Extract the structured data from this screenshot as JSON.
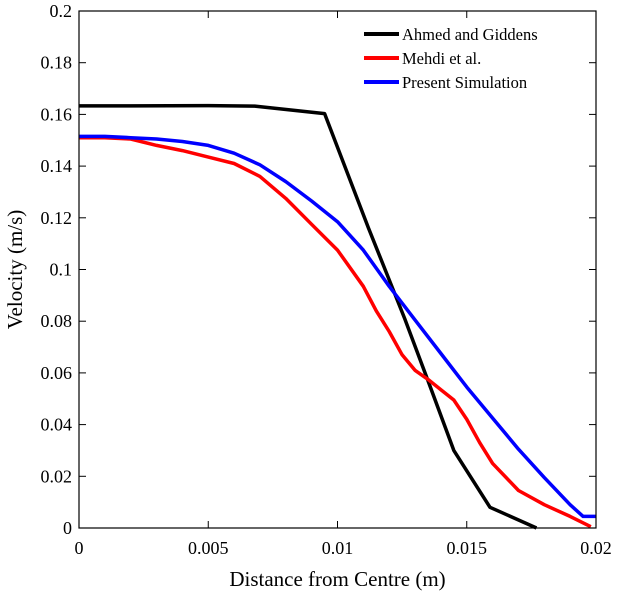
{
  "chart_data": {
    "type": "line",
    "title": "",
    "xlabel": "Distance from Centre (m)",
    "ylabel": "Velocity (m/s)",
    "xlim": [
      0,
      0.02
    ],
    "ylim": [
      0,
      0.2
    ],
    "xticks": [
      0,
      0.005,
      0.01,
      0.015,
      0.02
    ],
    "xtick_labels": [
      "0",
      "0.005",
      "0.01",
      "0.015",
      "0.02"
    ],
    "yticks": [
      0,
      0.02,
      0.04,
      0.06,
      0.08,
      0.1,
      0.12,
      0.14,
      0.16,
      0.18,
      0.2
    ],
    "ytick_labels": [
      "0",
      "0.02",
      "0.04",
      "0.06",
      "0.08",
      "0.1",
      "0.12",
      "0.14",
      "0.16",
      "0.18",
      "0.2"
    ],
    "grid": false,
    "legend_position": "top-right",
    "series": [
      {
        "name": "Ahmed and Giddens",
        "color": "#000000",
        "x": [
          0,
          0.002,
          0.005,
          0.0068,
          0.0095,
          0.0112,
          0.0126,
          0.0135,
          0.0145,
          0.0159,
          0.0177
        ],
        "y": [
          0.1633,
          0.1633,
          0.1634,
          0.1632,
          0.1603,
          0.116,
          0.081,
          0.057,
          0.03,
          0.008,
          0.0
        ]
      },
      {
        "name": "Mehdi et al.",
        "color": "#ff0000",
        "x": [
          0,
          0.001,
          0.002,
          0.003,
          0.004,
          0.005,
          0.006,
          0.007,
          0.008,
          0.009,
          0.01,
          0.011,
          0.0115,
          0.012,
          0.0125,
          0.013,
          0.0135,
          0.014,
          0.0145,
          0.015,
          0.0155,
          0.016,
          0.017,
          0.018,
          0.019,
          0.0198
        ],
        "y": [
          0.151,
          0.151,
          0.1505,
          0.148,
          0.146,
          0.1435,
          0.141,
          0.136,
          0.1275,
          0.1175,
          0.1075,
          0.0935,
          0.084,
          0.076,
          0.067,
          0.061,
          0.0575,
          0.0535,
          0.0495,
          0.042,
          0.033,
          0.025,
          0.0145,
          0.009,
          0.0045,
          0.0005
        ]
      },
      {
        "name": "Present Simulation",
        "color": "#0000ff",
        "x": [
          0,
          0.001,
          0.002,
          0.003,
          0.004,
          0.005,
          0.006,
          0.007,
          0.008,
          0.009,
          0.01,
          0.011,
          0.012,
          0.013,
          0.014,
          0.015,
          0.016,
          0.017,
          0.018,
          0.019,
          0.0195,
          0.02
        ],
        "y": [
          0.1515,
          0.1515,
          0.151,
          0.1505,
          0.1495,
          0.148,
          0.145,
          0.1405,
          0.134,
          0.1265,
          0.1185,
          0.1075,
          0.0935,
          0.0805,
          0.0675,
          0.0545,
          0.0425,
          0.0305,
          0.0195,
          0.009,
          0.0045,
          0.0045
        ]
      }
    ]
  }
}
